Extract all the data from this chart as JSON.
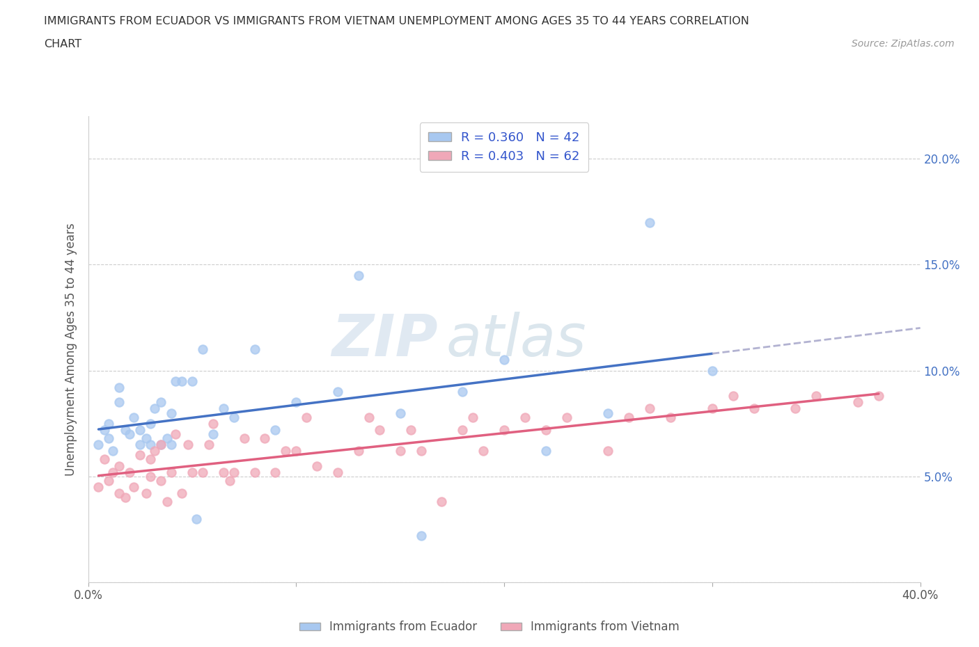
{
  "title_line1": "IMMIGRANTS FROM ECUADOR VS IMMIGRANTS FROM VIETNAM UNEMPLOYMENT AMONG AGES 35 TO 44 YEARS CORRELATION",
  "title_line2": "CHART",
  "source": "Source: ZipAtlas.com",
  "ylabel": "Unemployment Among Ages 35 to 44 years",
  "xlim": [
    0.0,
    0.4
  ],
  "ylim": [
    0.0,
    0.22
  ],
  "ecuador_color": "#a8c8f0",
  "vietnam_color": "#f0a8b8",
  "ecuador_line_color": "#4472c4",
  "vietnam_line_color": "#e06080",
  "ecuador_dash_color": "#aaaacc",
  "R_ecuador": 0.36,
  "N_ecuador": 42,
  "R_vietnam": 0.403,
  "N_vietnam": 62,
  "legend_label_ecuador": "Immigrants from Ecuador",
  "legend_label_vietnam": "Immigrants from Vietnam",
  "watermark_part1": "ZIP",
  "watermark_part2": "atlas",
  "ecuador_x": [
    0.005,
    0.008,
    0.01,
    0.01,
    0.012,
    0.015,
    0.015,
    0.018,
    0.02,
    0.022,
    0.025,
    0.025,
    0.028,
    0.03,
    0.03,
    0.032,
    0.035,
    0.035,
    0.038,
    0.04,
    0.04,
    0.042,
    0.045,
    0.05,
    0.052,
    0.055,
    0.06,
    0.065,
    0.07,
    0.08,
    0.09,
    0.1,
    0.12,
    0.13,
    0.15,
    0.16,
    0.18,
    0.2,
    0.22,
    0.25,
    0.27,
    0.3
  ],
  "ecuador_y": [
    0.065,
    0.072,
    0.068,
    0.075,
    0.062,
    0.085,
    0.092,
    0.072,
    0.07,
    0.078,
    0.065,
    0.072,
    0.068,
    0.065,
    0.075,
    0.082,
    0.065,
    0.085,
    0.068,
    0.065,
    0.08,
    0.095,
    0.095,
    0.095,
    0.03,
    0.11,
    0.07,
    0.082,
    0.078,
    0.11,
    0.072,
    0.085,
    0.09,
    0.145,
    0.08,
    0.022,
    0.09,
    0.105,
    0.062,
    0.08,
    0.17,
    0.1
  ],
  "vietnam_x": [
    0.005,
    0.008,
    0.01,
    0.012,
    0.015,
    0.015,
    0.018,
    0.02,
    0.022,
    0.025,
    0.028,
    0.03,
    0.03,
    0.032,
    0.035,
    0.035,
    0.038,
    0.04,
    0.042,
    0.045,
    0.048,
    0.05,
    0.055,
    0.058,
    0.06,
    0.065,
    0.068,
    0.07,
    0.075,
    0.08,
    0.085,
    0.09,
    0.095,
    0.1,
    0.105,
    0.11,
    0.12,
    0.13,
    0.135,
    0.14,
    0.15,
    0.155,
    0.16,
    0.17,
    0.18,
    0.185,
    0.19,
    0.2,
    0.21,
    0.22,
    0.23,
    0.25,
    0.26,
    0.27,
    0.28,
    0.3,
    0.31,
    0.32,
    0.34,
    0.35,
    0.37,
    0.38
  ],
  "vietnam_y": [
    0.045,
    0.058,
    0.048,
    0.052,
    0.042,
    0.055,
    0.04,
    0.052,
    0.045,
    0.06,
    0.042,
    0.05,
    0.058,
    0.062,
    0.048,
    0.065,
    0.038,
    0.052,
    0.07,
    0.042,
    0.065,
    0.052,
    0.052,
    0.065,
    0.075,
    0.052,
    0.048,
    0.052,
    0.068,
    0.052,
    0.068,
    0.052,
    0.062,
    0.062,
    0.078,
    0.055,
    0.052,
    0.062,
    0.078,
    0.072,
    0.062,
    0.072,
    0.062,
    0.038,
    0.072,
    0.078,
    0.062,
    0.072,
    0.078,
    0.072,
    0.078,
    0.062,
    0.078,
    0.082,
    0.078,
    0.082,
    0.088,
    0.082,
    0.082,
    0.088,
    0.085,
    0.088
  ]
}
